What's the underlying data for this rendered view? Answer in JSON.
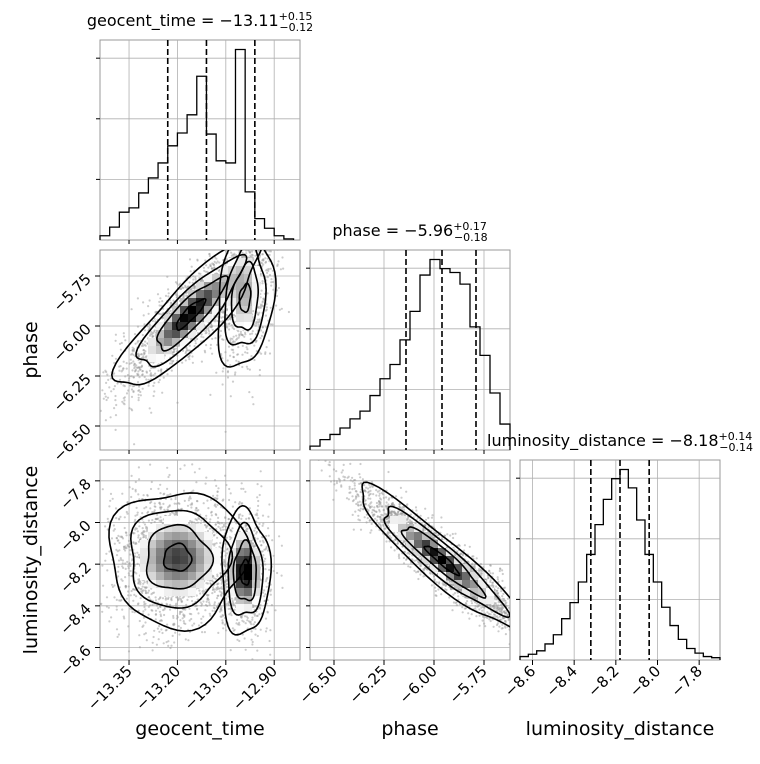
{
  "chart_data": {
    "type": "corner",
    "grid": true,
    "parameters": [
      "geocent_time",
      "phase",
      "luminosity_distance"
    ],
    "ranges": {
      "geocent_time": [
        -13.44,
        -12.82
      ],
      "phase": [
        -6.62,
        -5.62
      ],
      "luminosity_distance": [
        -8.66,
        -7.7
      ]
    },
    "ticks": {
      "geocent_time": [
        "−13.35",
        "−13.20",
        "−13.05",
        "−12.90"
      ],
      "geocent_time_values": [
        -13.35,
        -13.2,
        -13.05,
        -12.9
      ],
      "phase": [
        "−6.50",
        "−6.25",
        "−6.00",
        "−5.75"
      ],
      "phase_values": [
        -6.5,
        -6.25,
        -6.0,
        -5.75
      ],
      "luminosity_distance": [
        "−8.6",
        "−8.4",
        "−8.2",
        "−8.0",
        "−7.8"
      ],
      "luminosity_distance_values": [
        -8.6,
        -8.4,
        -8.2,
        -8.0,
        -7.8
      ]
    },
    "titles": {
      "geocent_time": {
        "name": "geocent_time",
        "median": "−13.11",
        "plus": "+0.15",
        "minus": "−0.12"
      },
      "phase": {
        "name": "phase",
        "median": "−5.96",
        "plus": "+0.17",
        "minus": "−0.18"
      },
      "luminosity_distance": {
        "name": "luminosity_distance",
        "median": "−8.18",
        "plus": "+0.14",
        "minus": "−0.14"
      }
    },
    "quantiles": {
      "geocent_time": [
        -13.23,
        -13.11,
        -12.96
      ],
      "phase": [
        -6.14,
        -5.96,
        -5.79
      ],
      "luminosity_distance": [
        -8.32,
        -8.18,
        -8.04
      ]
    },
    "histograms": {
      "geocent_time": {
        "edges": [
          -13.44,
          -13.41,
          -13.38,
          -13.35,
          -13.32,
          -13.29,
          -13.26,
          -13.23,
          -13.2,
          -13.17,
          -13.14,
          -13.11,
          -13.08,
          -13.05,
          -13.02,
          -12.99,
          -12.96,
          -12.93,
          -12.9,
          -12.87,
          -12.84
        ],
        "counts": [
          4,
          12,
          26,
          30,
          44,
          58,
          72,
          88,
          100,
          117,
          153,
          99,
          74,
          72,
          178,
          45,
          20,
          11,
          4,
          1
        ]
      },
      "phase": {
        "edges": [
          -6.62,
          -6.57,
          -6.52,
          -6.47,
          -6.42,
          -6.37,
          -6.32,
          -6.27,
          -6.22,
          -6.17,
          -6.12,
          -6.07,
          -6.02,
          -5.97,
          -5.92,
          -5.87,
          -5.82,
          -5.77,
          -5.72,
          -5.67,
          -5.62
        ],
        "counts": [
          3,
          8,
          12,
          17,
          24,
          30,
          42,
          55,
          66,
          85,
          107,
          135,
          147,
          140,
          137,
          128,
          95,
          73,
          44,
          20
        ]
      },
      "luminosity_distance": {
        "edges": [
          -8.66,
          -8.62,
          -8.58,
          -8.54,
          -8.5,
          -8.46,
          -8.42,
          -8.38,
          -8.34,
          -8.3,
          -8.26,
          -8.22,
          -8.18,
          -8.14,
          -8.1,
          -8.06,
          -8.02,
          -7.98,
          -7.94,
          -7.9,
          -7.86,
          -7.82,
          -7.78,
          -7.74,
          -7.7
        ],
        "counts": [
          3,
          5,
          8,
          14,
          22,
          36,
          50,
          68,
          92,
          118,
          140,
          158,
          166,
          150,
          122,
          92,
          68,
          46,
          30,
          18,
          10,
          6,
          3,
          2
        ]
      }
    },
    "density_blobs": {
      "phase_vs_geocent_time": [
        {
          "cx": -13.16,
          "cy": -5.94,
          "sx": 0.09,
          "sy": 0.15,
          "rho": 0.86,
          "w": 0.72
        },
        {
          "cx": -12.99,
          "cy": -5.86,
          "sx": 0.035,
          "sy": 0.14,
          "rho": 0.2,
          "w": 0.28
        }
      ],
      "luminosity_distance_vs_geocent_time": [
        {
          "cx": -13.2,
          "cy": -8.17,
          "sx": 0.085,
          "sy": 0.13,
          "rho": 0.0,
          "w": 0.72
        },
        {
          "cx": -12.99,
          "cy": -8.24,
          "sx": 0.03,
          "sy": 0.12,
          "rho": 0.0,
          "w": 0.28
        }
      ],
      "luminosity_distance_vs_phase": [
        {
          "cx": -5.96,
          "cy": -8.18,
          "sx": 0.17,
          "sy": 0.14,
          "rho": -0.93,
          "w": 1.0
        }
      ]
    }
  }
}
